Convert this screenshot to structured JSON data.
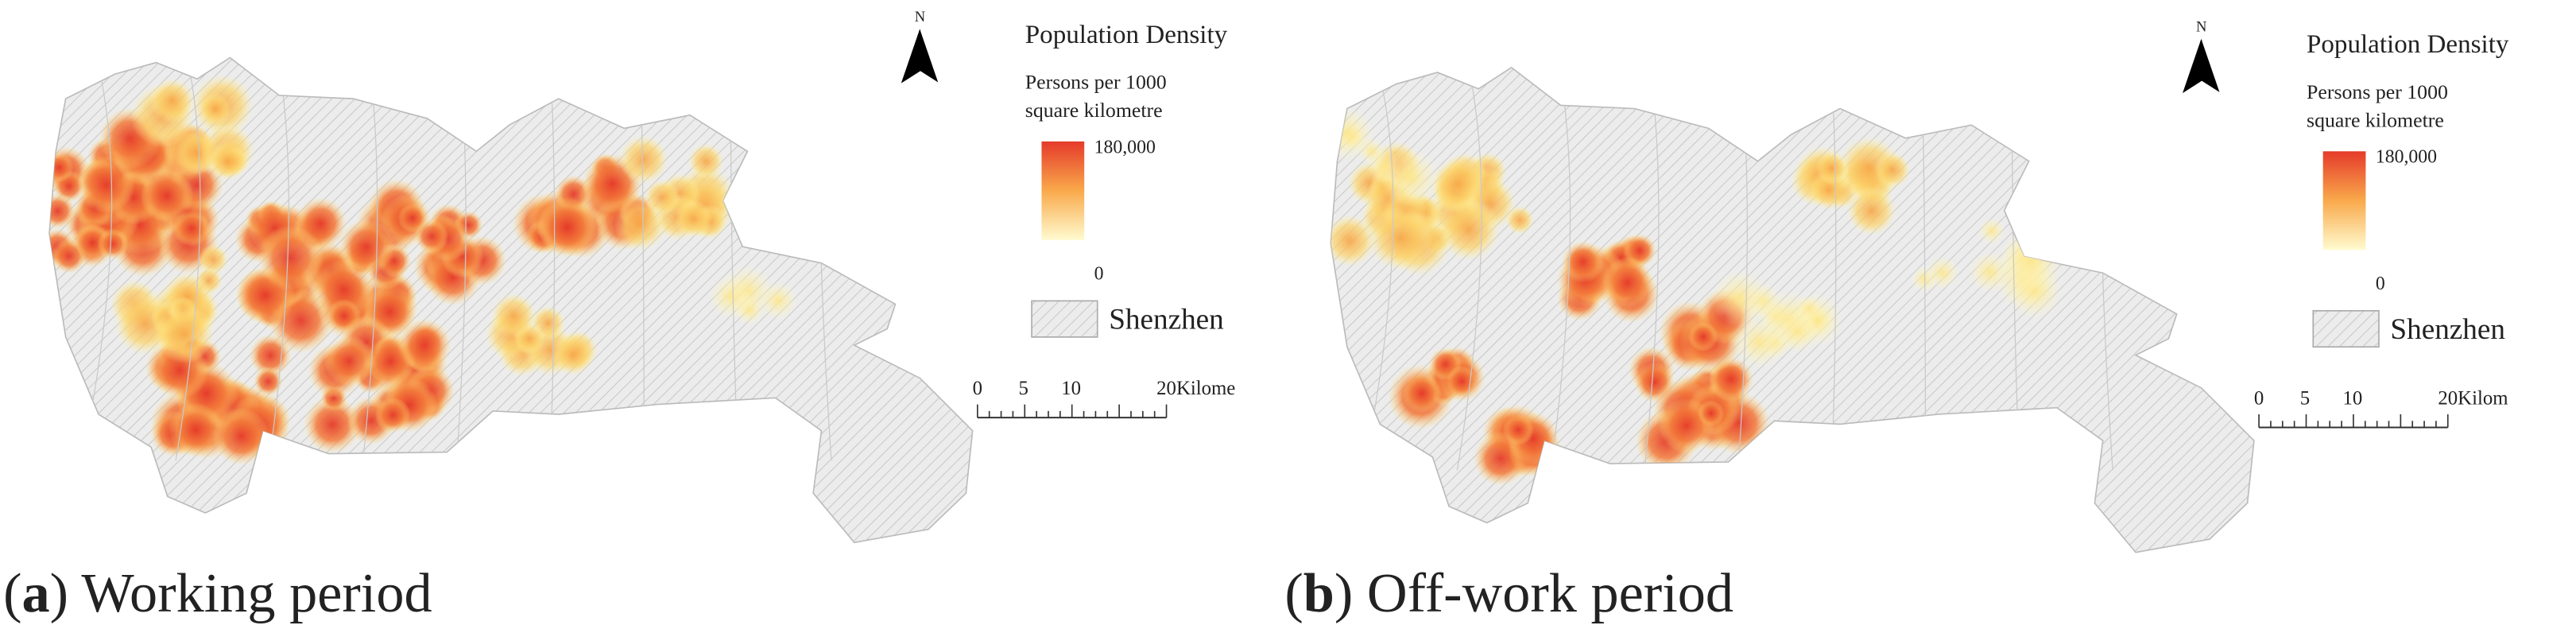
{
  "panels": [
    {
      "caption": [
        "(",
        "a",
        ") Working period"
      ],
      "north": "N",
      "legend": {
        "title": "Population Density",
        "subtitle": [
          "Persons per 1000",
          "square kilometre"
        ],
        "max": "180,000",
        "min": "0",
        "area": "Shenzhen"
      },
      "scale_bar": {
        "ticks": [
          "0",
          "5",
          "10",
          "20"
        ],
        "unit": "Kilome"
      }
    },
    {
      "caption": [
        "(",
        "b",
        ") Off-work period"
      ],
      "north": "N",
      "legend": {
        "title": "Population Density",
        "subtitle": [
          "Persons per 1000",
          "square kilometre"
        ],
        "max": "180,000",
        "min": "0",
        "area": "Shenzhen"
      },
      "scale_bar": {
        "ticks": [
          "0",
          "5",
          "10",
          "20"
        ],
        "unit": "Kilom"
      }
    }
  ]
}
